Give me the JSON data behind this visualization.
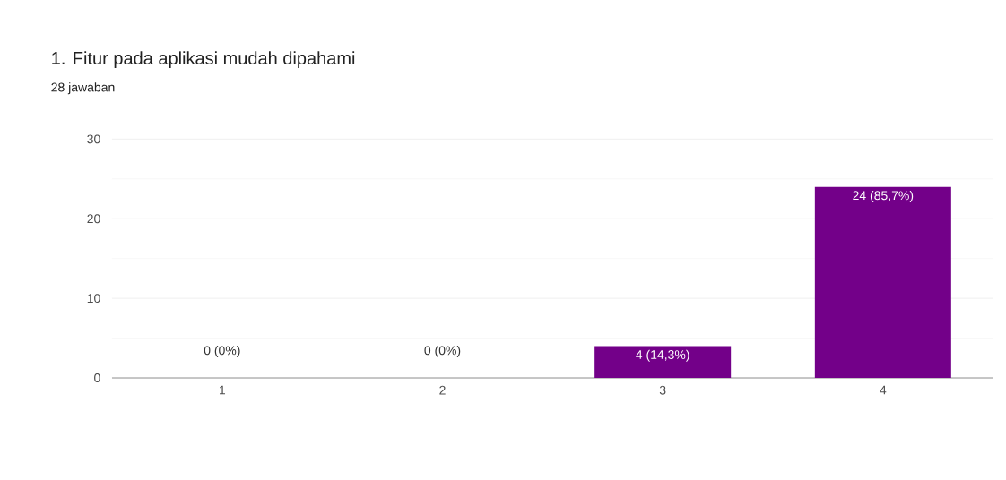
{
  "chart_data": {
    "type": "bar",
    "title": "1. Fitur pada aplikasi mudah dipahami",
    "subtitle": "28 jawaban",
    "categories": [
      "1",
      "2",
      "3",
      "4"
    ],
    "values": [
      0,
      0,
      4,
      24
    ],
    "value_labels": [
      "0 (0%)",
      "0 (0%)",
      "4 (14,3%)",
      "24 (85,7%)"
    ],
    "color": "#730089",
    "ylim": [
      0,
      30
    ],
    "yticks": [
      0,
      10,
      20,
      30
    ],
    "grid": "y"
  }
}
